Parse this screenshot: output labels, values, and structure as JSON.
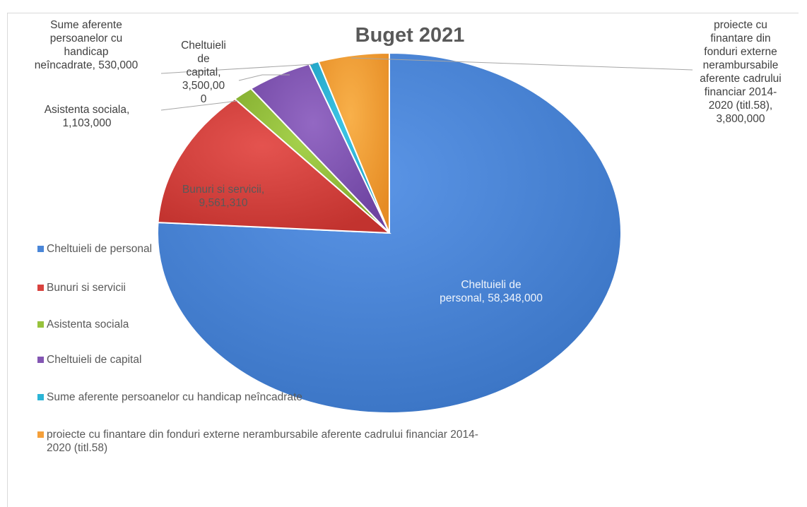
{
  "chart_data": {
    "type": "pie",
    "title": "Buget 2021",
    "legend_position": "left",
    "slices": [
      {
        "name": "Cheltuieli de personal",
        "value": 58348000,
        "color": "#4a86d8",
        "label": "Cheltuieli de personal, 58,348,000"
      },
      {
        "name": "Bunuri si servicii",
        "value": 9561310,
        "color": "#d9433f",
        "label": "Bunuri si servicii, 9,561,310"
      },
      {
        "name": "Asistenta sociala",
        "value": 1103000,
        "color": "#97c23c",
        "label": "Asistenta sociala, 1,103,000"
      },
      {
        "name": "Cheltuieli de capital",
        "value": 3500000,
        "color": "#8356b3",
        "label": "Cheltuieli de capital, 3,500,000"
      },
      {
        "name": "Sume aferente persoanelor cu handicap neîncadrate",
        "value": 530000,
        "color": "#2cb5d6",
        "label": "Sume aferente persoanelor cu handicap neîncadrate, 530,000"
      },
      {
        "name": "proiecte cu finantare din fonduri externe nerambursabile aferente cadrului financiar 2014-2020 (titl.58)",
        "value": 3800000,
        "color": "#f5a03a",
        "label": "proiecte cu finantare din fonduri externe nerambursabile aferente cadrului financiar 2014-2020 (titl.58), 3,800,000"
      }
    ]
  },
  "labels": {
    "personal": [
      "Cheltuieli de",
      "personal, 58,348,000"
    ],
    "bunuri": [
      "Bunuri si servicii,",
      "9,561,310"
    ],
    "asistenta": [
      "Asistenta sociala,",
      "1,103,000"
    ],
    "capital": [
      "Cheltuieli",
      "de",
      "capital,",
      "3,500,00",
      "0"
    ],
    "handicap": [
      "Sume aferente",
      "persoanelor cu",
      "handicap",
      "neîncadrate, 530,000"
    ],
    "proiecte": [
      "proiecte cu",
      "finantare din",
      "fonduri externe",
      "nerambursabile",
      "aferente cadrului",
      "financiar 2014-",
      "2020 (titl.58),",
      "3,800,000"
    ]
  },
  "legend": [
    {
      "text": "Cheltuieli de personal",
      "color": "#4a86d8"
    },
    {
      "text": "Bunuri si servicii",
      "color": "#d9433f"
    },
    {
      "text": "Asistenta sociala",
      "color": "#97c23c"
    },
    {
      "text": "Cheltuieli de capital",
      "color": "#8356b3"
    },
    {
      "text": "Sume aferente persoanelor cu handicap neîncadrate",
      "color": "#2cb5d6"
    },
    {
      "text": [
        "proiecte cu finantare din fonduri externe nerambursabile aferente cadrului financiar 2014-",
        "2020 (titl.58)"
      ],
      "color": "#f5a03a"
    }
  ]
}
